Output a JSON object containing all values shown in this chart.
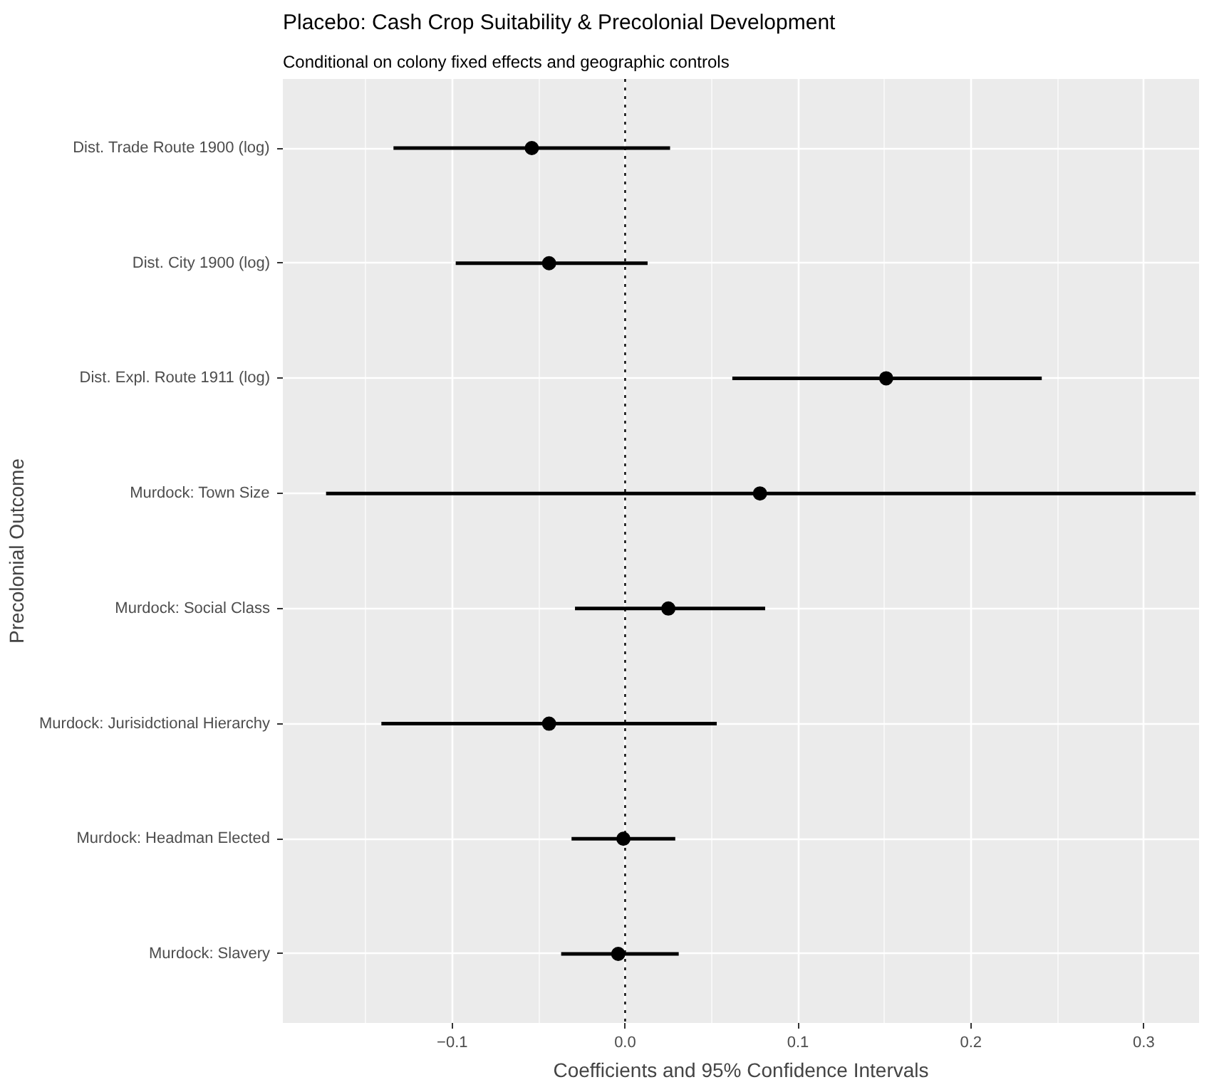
{
  "chart_data": {
    "type": "scatter",
    "orientation": "horizontal",
    "title": "Placebo: Cash Crop Suitability & Precolonial Development",
    "subtitle": "Conditional on colony fixed effects and geographic controls",
    "xlabel": "Coefficients and 95% Confidence Intervals",
    "ylabel": "Precolonial Outcome",
    "categories": [
      "Dist. Trade Route 1900 (log)",
      "Dist. City 1900 (log)",
      "Dist. Expl. Route 1911 (log)",
      "Murdock: Town Size",
      "Murdock: Social Class",
      "Murdock: Jurisidctional Hierarchy",
      "Murdock: Headman Elected",
      "Murdock: Slavery"
    ],
    "color": "#000000",
    "values": [
      -0.054,
      -0.044,
      0.151,
      0.078,
      0.025,
      -0.044,
      -0.001,
      -0.004
    ],
    "errors": [
      [
        -0.134,
        0.026
      ],
      [
        -0.098,
        0.013
      ],
      [
        0.062,
        0.241
      ],
      [
        -0.173,
        0.33
      ],
      [
        -0.029,
        0.081
      ],
      [
        -0.141,
        0.053
      ],
      [
        -0.031,
        0.029
      ],
      [
        -0.037,
        0.031
      ]
    ],
    "xlim": [
      -0.198,
      0.332
    ],
    "xticks": [
      {
        "value": -0.1,
        "label": "−0.1"
      },
      {
        "value": 0,
        "label": "0.0"
      },
      0.1,
      0.2,
      0.3
    ],
    "ref_lines": [
      {
        "axis": "x",
        "value": 0,
        "line_style": "dotted",
        "color": "#000000"
      }
    ],
    "grid": true,
    "marker": "circle"
  }
}
